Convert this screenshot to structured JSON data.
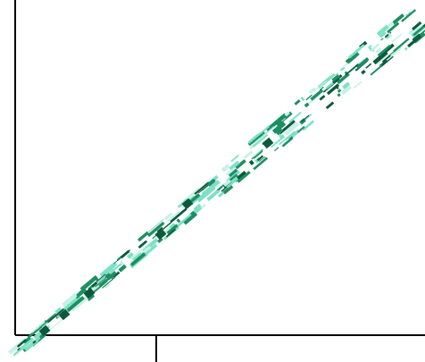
{
  "frame": {
    "line_color": "#000000",
    "background": "#ffffff"
  },
  "artifact": {
    "description_colors": {
      "dark": "#0b5a3c",
      "mid": "#1e8e62",
      "light": "#7ee0c4",
      "pale": "#c6f1e6"
    }
  }
}
